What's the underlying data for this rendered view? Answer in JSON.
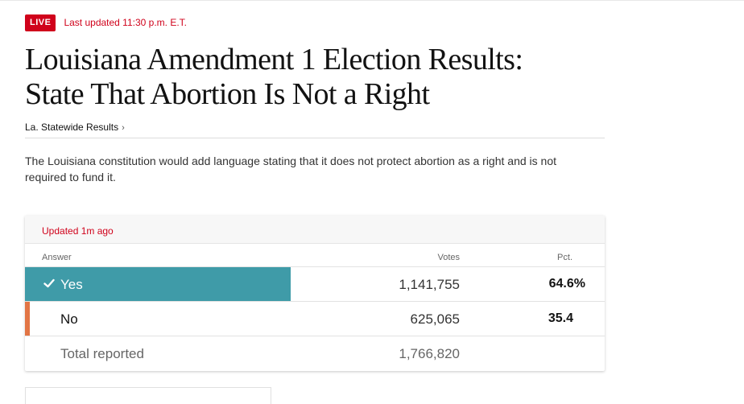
{
  "live": {
    "badge": "LIVE",
    "updated": "Last updated 11:30 p.m. E.T."
  },
  "headline": {
    "line1": "Louisiana Amendment 1 Election Results:",
    "line2": "State That Abortion Is Not a Right"
  },
  "nav": {
    "statewide_link": "La. Statewide Results",
    "chevron": "›"
  },
  "description": "The Louisiana constitution would add language stating that it does not protect abortion as a right and is not required to fund it.",
  "results": {
    "updated": "Updated 1m ago",
    "columns": {
      "answer": "Answer",
      "votes": "Votes",
      "pct": "Pct."
    },
    "rows": [
      {
        "answer": "Yes",
        "votes": "1,141,755",
        "pct": "64.6%",
        "winner": true,
        "color": "#3f9ba8",
        "share": 0.646
      },
      {
        "answer": "No",
        "votes": "625,065",
        "pct": "35.4",
        "winner": false,
        "color": "#e27545",
        "share": 0.354
      }
    ],
    "total": {
      "label": "Total reported",
      "votes": "1,766,820"
    }
  },
  "colors": {
    "brand_red": "#d0021b",
    "yes_teal": "#3f9ba8",
    "no_orange": "#e27545"
  },
  "icons": {
    "winner": "check-icon"
  }
}
